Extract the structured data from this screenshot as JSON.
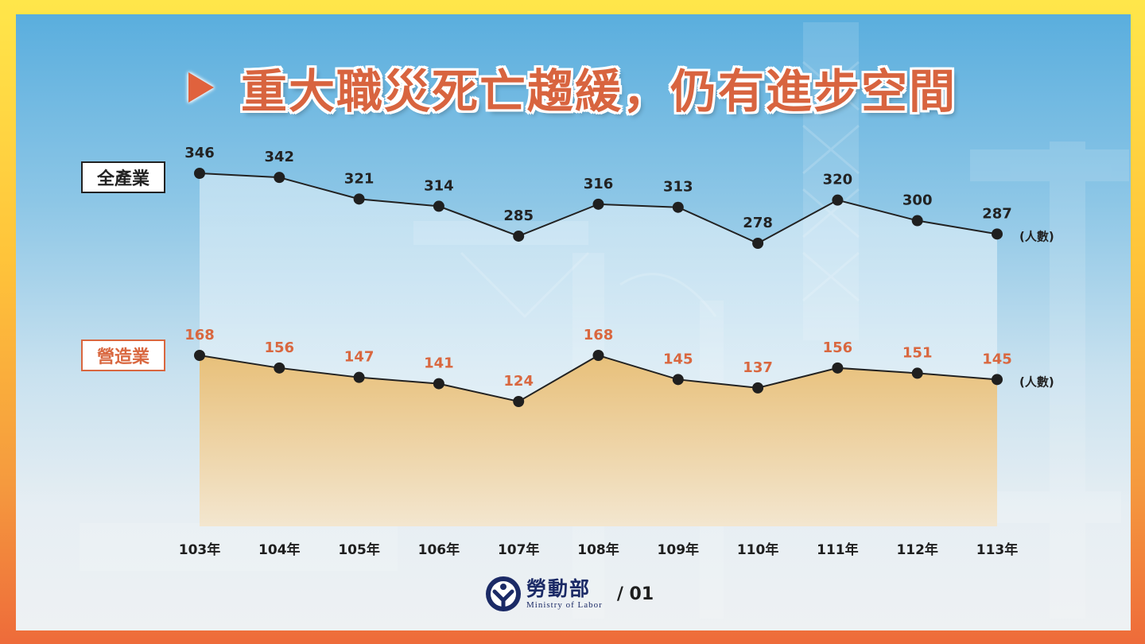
{
  "slide": {
    "title": "重大職災死亡趨緩，仍有進步空間",
    "page": "/ 01"
  },
  "logo": {
    "name_zh": "勞動部",
    "name_en": "Ministry  of  Labor",
    "icon": "ministry-of-labor-emblem-icon"
  },
  "colors": {
    "title": "#d8643f",
    "all_series": "#222222",
    "construction_series": "#d9673f",
    "construction_fill": "#e8c07a"
  },
  "chart_data": {
    "type": "line",
    "categories": [
      "103年",
      "104年",
      "105年",
      "106年",
      "107年",
      "108年",
      "109年",
      "110年",
      "111年",
      "112年",
      "113年"
    ],
    "series": [
      {
        "name": "全產業",
        "unit": "(人數)",
        "values": [
          346,
          342,
          321,
          314,
          285,
          316,
          313,
          278,
          320,
          300,
          287
        ]
      },
      {
        "name": "營造業",
        "unit": "(人數)",
        "values": [
          168,
          156,
          147,
          141,
          124,
          168,
          145,
          137,
          156,
          151,
          145
        ]
      }
    ],
    "xlabel": "",
    "ylabel": "",
    "grid": false,
    "legend": "left"
  }
}
